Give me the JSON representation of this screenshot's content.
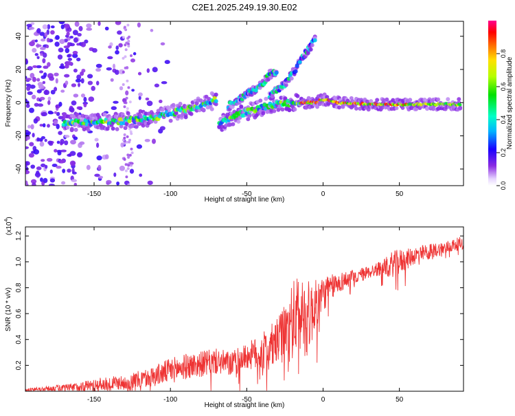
{
  "figure": {
    "title": "C2E1.2025.249.19.30.E02"
  },
  "chart_data": [
    {
      "type": "heatmap",
      "title": "C2E1.2025.249.19.30.E02",
      "xlabel": "Height of straight line (km)",
      "ylabel": "Frequency (Hz)",
      "xlim": [
        -195,
        92
      ],
      "ylim": [
        -50,
        49
      ],
      "xticks": [
        -150,
        -100,
        -50,
        0,
        50
      ],
      "xtick_labels": [
        "-150",
        "-100",
        "-50",
        "0",
        "50"
      ],
      "yticks": [
        -40,
        -20,
        0,
        20,
        40
      ],
      "ytick_labels": [
        "-40",
        "-20",
        "0",
        "20",
        "40"
      ],
      "colorbar": {
        "label": "Normalized spectral amplitude",
        "range": [
          0,
          1
        ],
        "ticks": [
          0.0,
          0.2,
          0.4,
          0.6,
          0.8
        ],
        "tick_labels": [
          "0.0",
          "0.2",
          "0.4",
          "0.6",
          "0.8"
        ]
      },
      "ridges": [
        {
          "name": "lower-ridge",
          "points": [
            [
              -170,
              -12
            ],
            [
              -150,
              -12
            ],
            [
              -130,
              -11
            ],
            [
              -110,
              -9
            ],
            [
              -90,
              -4
            ],
            [
              -75,
              0
            ],
            [
              -70,
              2
            ]
          ]
        },
        {
          "name": "middle-ridge",
          "points": [
            [
              -68,
              -13
            ],
            [
              -55,
              -7
            ],
            [
              -40,
              -3
            ],
            [
              -30,
              -1
            ],
            [
              -20,
              0
            ],
            [
              -15,
              0
            ]
          ]
        },
        {
          "name": "upper-branch-1",
          "points": [
            [
              -62,
              -2
            ],
            [
              -50,
              5
            ],
            [
              -40,
              11
            ],
            [
              -35,
              17
            ],
            [
              -30,
              19
            ]
          ]
        },
        {
          "name": "upper-branch-2",
          "points": [
            [
              -35,
              4
            ],
            [
              -25,
              11
            ],
            [
              -18,
              20
            ],
            [
              -15,
              25
            ],
            [
              -10,
              32
            ],
            [
              -5,
              38
            ]
          ]
        },
        {
          "name": "flat-ridge",
          "points": [
            [
              -15,
              0
            ],
            [
              -5,
              0
            ],
            [
              0,
              2
            ],
            [
              10,
              0
            ],
            [
              30,
              -1
            ],
            [
              60,
              -1
            ],
            [
              90,
              -1
            ]
          ]
        }
      ]
    },
    {
      "type": "line",
      "xlabel": "Height of straight line (km)",
      "ylabel": "SNR (10 * v/v)",
      "y_multiplier_label": "(x10",
      "y_multiplier_exp": "4",
      "y_multiplier_close": ")",
      "xlim": [
        -195,
        92
      ],
      "ylim": [
        0,
        1.27
      ],
      "xticks": [
        -150,
        -100,
        -50,
        0,
        50
      ],
      "xtick_labels": [
        "-150",
        "-100",
        "-50",
        "0",
        "50"
      ],
      "yticks": [
        0.2,
        0.4,
        0.6,
        0.8,
        1.0,
        1.2
      ],
      "ytick_labels": [
        "0.2",
        "0.4",
        "0.6",
        "0.8",
        "1.0",
        "1.2"
      ],
      "series": [
        {
          "name": "SNR",
          "color": "#ee3333",
          "x": [
            -195,
            -180,
            -165,
            -150,
            -140,
            -130,
            -120,
            -110,
            -100,
            -90,
            -80,
            -70,
            -60,
            -50,
            -40,
            -30,
            -25,
            -20,
            -15,
            -10,
            -5,
            0,
            5,
            10,
            20,
            30,
            40,
            45,
            50,
            55,
            60,
            70,
            80,
            92
          ],
          "values": [
            0.01,
            0.02,
            0.03,
            0.05,
            0.06,
            0.07,
            0.09,
            0.12,
            0.16,
            0.19,
            0.21,
            0.23,
            0.21,
            0.27,
            0.3,
            0.38,
            0.45,
            0.55,
            0.6,
            0.56,
            0.66,
            0.75,
            0.8,
            0.84,
            0.88,
            0.92,
            0.96,
            0.98,
            1.0,
            1.02,
            1.05,
            1.08,
            1.11,
            1.15
          ],
          "spread": [
            0.01,
            0.02,
            0.03,
            0.05,
            0.05,
            0.06,
            0.07,
            0.08,
            0.1,
            0.1,
            0.1,
            0.1,
            0.1,
            0.1,
            0.15,
            0.18,
            0.22,
            0.3,
            0.32,
            0.3,
            0.2,
            0.14,
            0.1,
            0.08,
            0.06,
            0.05,
            0.06,
            0.1,
            0.1,
            0.08,
            0.07,
            0.06,
            0.05,
            0.05
          ]
        }
      ]
    }
  ]
}
